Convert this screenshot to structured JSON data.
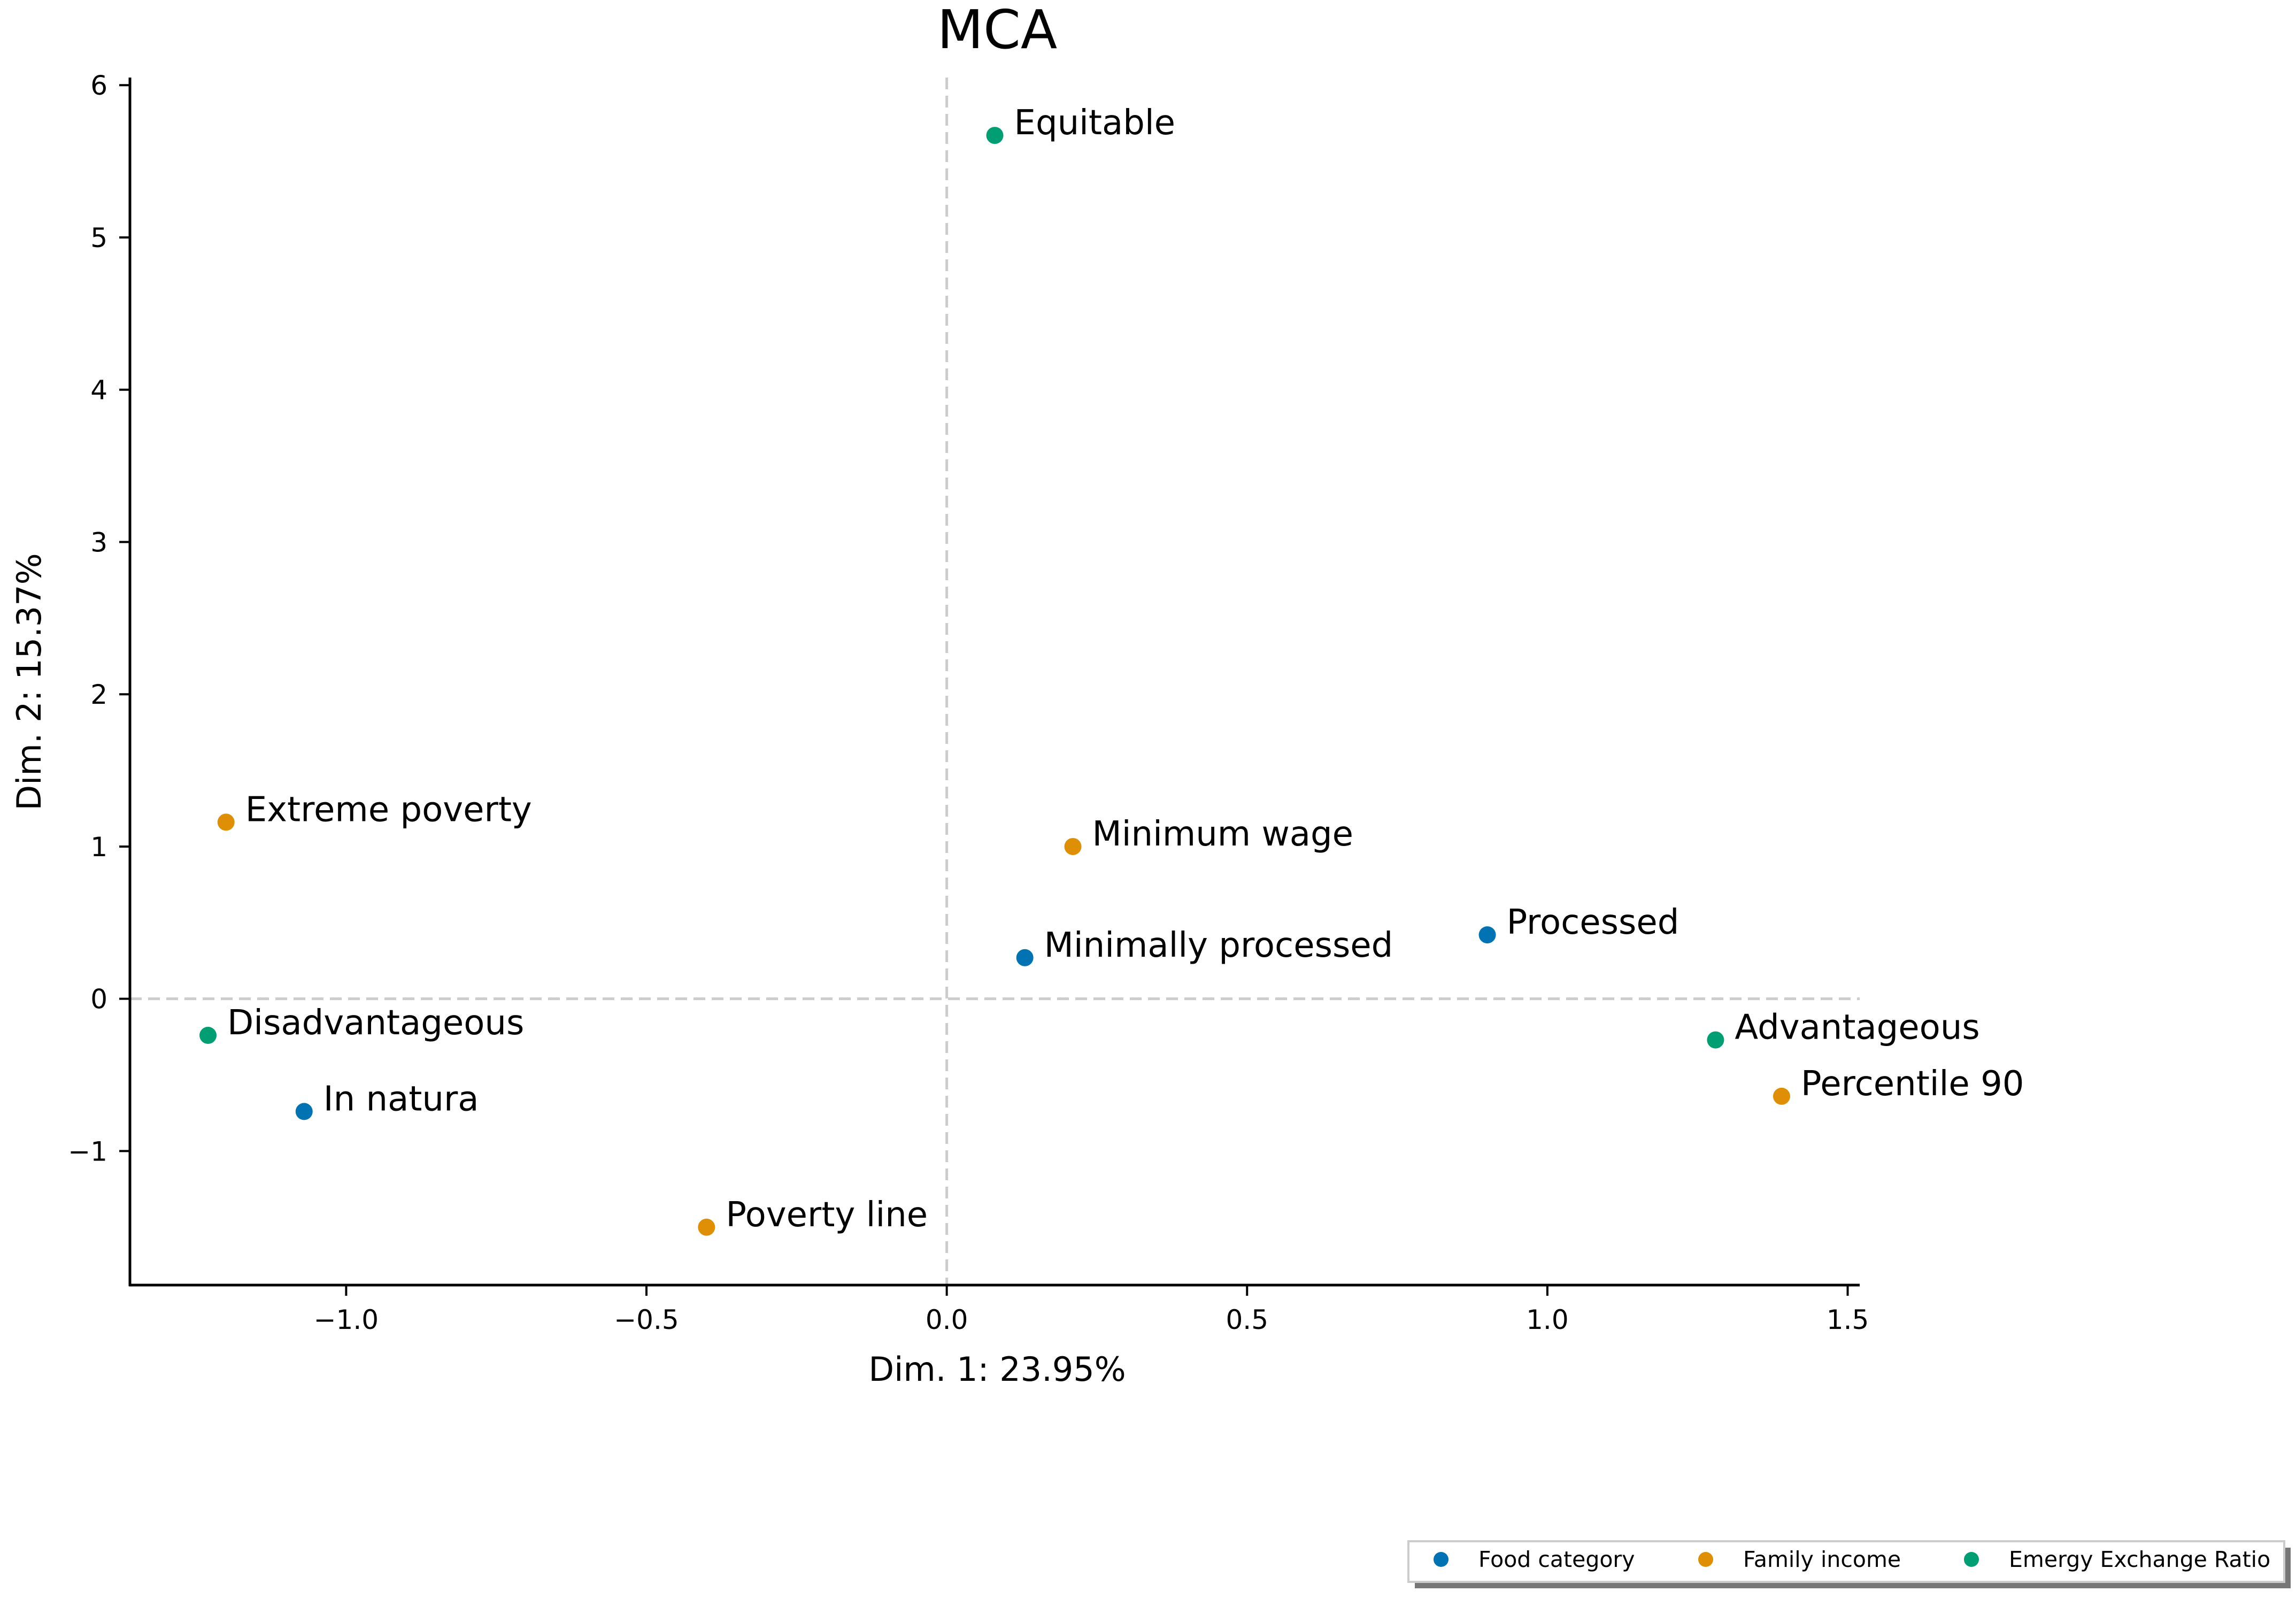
{
  "chart_data": {
    "type": "scatter",
    "title": "MCA",
    "xlabel": "Dim. 1: 23.95%",
    "ylabel": "Dim. 2: 15.37%",
    "xlim": [
      -1.36,
      1.52
    ],
    "ylim": [
      -1.88,
      6.05
    ],
    "xticks": [
      -1.0,
      -0.5,
      0.0,
      0.5,
      1.0,
      1.5
    ],
    "xtick_labels": [
      "−1.0",
      "−0.5",
      "0.0",
      "0.5",
      "1.0",
      "1.5"
    ],
    "yticks": [
      -1,
      0,
      1,
      2,
      3,
      4,
      5,
      6
    ],
    "ytick_labels": [
      "−1",
      "0",
      "1",
      "2",
      "3",
      "4",
      "5",
      "6"
    ],
    "reference_lines": {
      "x": 0,
      "y": 0,
      "style": "dashed"
    },
    "grid": false,
    "legend_position": "bottom-right",
    "series": [
      {
        "name": "Food category",
        "color": "#0173b2",
        "points": [
          {
            "label": "In natura",
            "x": -1.07,
            "y": -0.74
          },
          {
            "label": "Minimally processed",
            "x": 0.13,
            "y": 0.27
          },
          {
            "label": "Processed",
            "x": 0.9,
            "y": 0.42
          }
        ]
      },
      {
        "name": "Family income",
        "color": "#de8f05",
        "points": [
          {
            "label": "Extreme poverty",
            "x": -1.2,
            "y": 1.16
          },
          {
            "label": "Minimum wage",
            "x": 0.21,
            "y": 1.0
          },
          {
            "label": "Poverty line",
            "x": -0.4,
            "y": -1.5
          },
          {
            "label": "Percentile 90",
            "x": 1.39,
            "y": -0.64
          }
        ]
      },
      {
        "name": "Emergy Exchange Ratio",
        "color": "#029e73",
        "points": [
          {
            "label": "Equitable",
            "x": 0.08,
            "y": 5.67
          },
          {
            "label": "Disadvantageous",
            "x": -1.23,
            "y": -0.24
          },
          {
            "label": "Advantageous",
            "x": 1.28,
            "y": -0.27
          }
        ]
      }
    ]
  }
}
